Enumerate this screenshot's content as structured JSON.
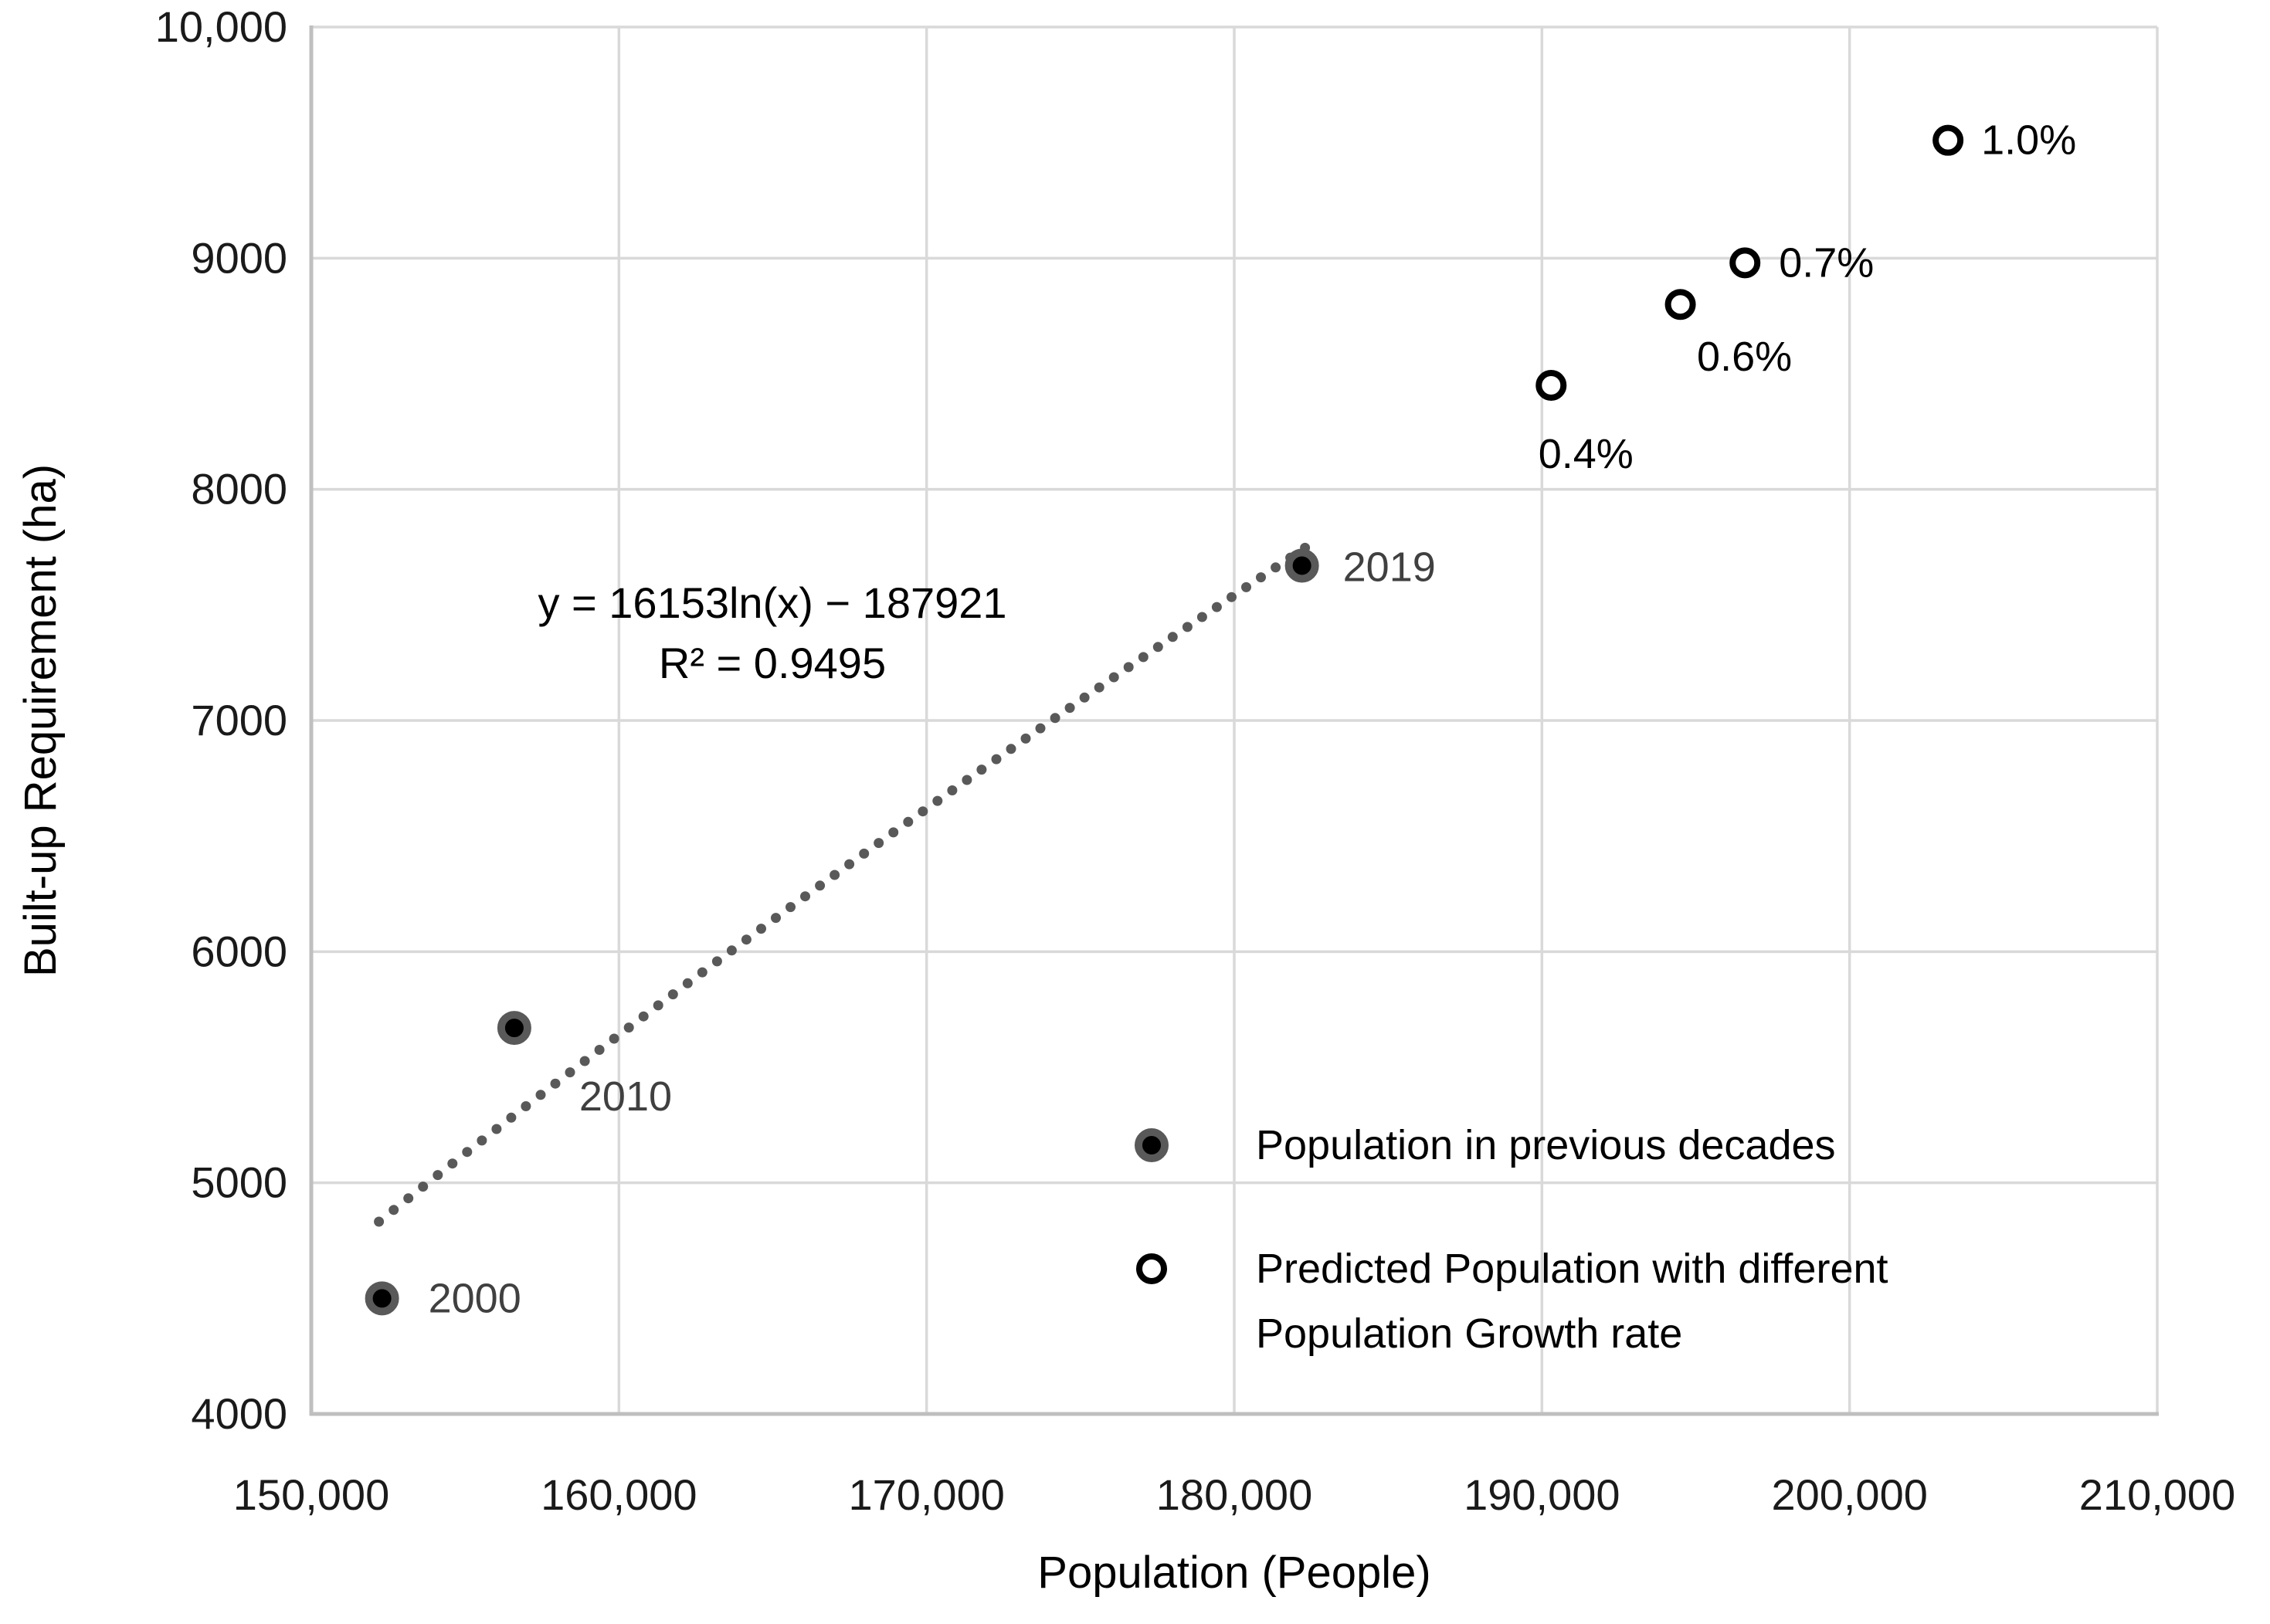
{
  "chart_data": {
    "type": "scatter",
    "title": "",
    "xlabel": "Population (People)",
    "ylabel": "Built-up Requirement (ha)",
    "grid": true,
    "legend_position": "inside-bottom-right",
    "x_axis": {
      "min": 150000,
      "max": 210000,
      "tick_values": [
        150000,
        160000,
        170000,
        180000,
        190000,
        200000,
        210000
      ],
      "tick_labels": [
        "150,000",
        "160,000",
        "170,000",
        "180,000",
        "190,000",
        "200,000",
        "210,000"
      ]
    },
    "y_axis": {
      "min": 4000,
      "max": 10000,
      "tick_values": [
        4000,
        5000,
        6000,
        7000,
        8000,
        9000,
        10000
      ],
      "tick_labels": [
        "4000",
        "5000",
        "6000",
        "7000",
        "8000",
        "9000",
        "10,000"
      ]
    },
    "series": [
      {
        "name": "Population in previous decades",
        "marker": "filled-circle",
        "points": [
          {
            "label": "2000",
            "x": 152300,
            "y": 4500,
            "label_anchor": "start",
            "label_dx": 60,
            "label_dy": 18
          },
          {
            "label": "2010",
            "x": 156600,
            "y": 5670,
            "label_anchor": "start",
            "label_dx": 84,
            "label_dy": 107
          },
          {
            "label": "2019",
            "x": 182200,
            "y": 7670,
            "label_anchor": "start",
            "label_dx": 53,
            "label_dy": 20
          }
        ]
      },
      {
        "name": "Predicted Population with different Population Growth rate",
        "marker": "open-circle",
        "points": [
          {
            "label": "0.4%",
            "x": 190300,
            "y": 8450,
            "label_anchor": "middle",
            "label_dx": 45,
            "label_dy": 107
          },
          {
            "label": "0.6%",
            "x": 194500,
            "y": 8800,
            "label_anchor": "middle",
            "label_dx": 83,
            "label_dy": 86
          },
          {
            "label": "0.7%",
            "x": 196600,
            "y": 8980,
            "label_anchor": "start",
            "label_dx": 44,
            "label_dy": 18
          },
          {
            "label": "1.0%",
            "x": 203200,
            "y": 9510,
            "label_anchor": "start",
            "label_dx": 43,
            "label_dy": 18
          }
        ]
      }
    ],
    "trendline": {
      "type": "logarithmic",
      "style": "dotted",
      "equation": "y = 16153ln(x) − 187921",
      "r_squared": "R² = 0.9495",
      "coef_a": 16153,
      "coef_b": -187921,
      "x_start": 152200,
      "x_end": 182300
    }
  },
  "legend": {
    "item1": "Population in previous decades",
    "item2_line1": "Predicted Population with different",
    "item2_line2": "Population Growth rate"
  },
  "colors": {
    "background": "#FFFFFF",
    "gridline": "#D9D9D9",
    "axis_line": "#BFBFBF",
    "marker_fill": "#000000",
    "marker_ring": "#595959",
    "open_marker_stroke": "#000000",
    "trendline": "#595959",
    "year_label": "#404040",
    "text": "#000000"
  }
}
